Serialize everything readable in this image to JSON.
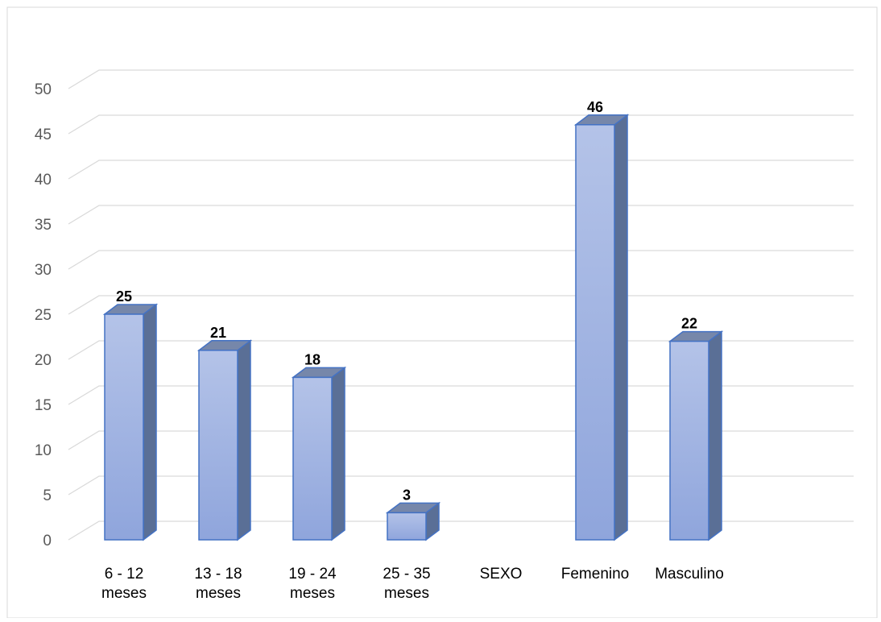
{
  "chart_data": {
    "type": "bar",
    "style": "3d-clustered-column",
    "title": "",
    "xlabel": "",
    "ylabel": "",
    "ylim": [
      0,
      50
    ],
    "y_ticks": [
      "0",
      "5",
      "10",
      "15",
      "20",
      "25",
      "30",
      "35",
      "40",
      "45",
      "50"
    ],
    "grid": true,
    "legend": "none",
    "categories": [
      [
        "6 - 12",
        "meses"
      ],
      [
        "13 - 18",
        "meses"
      ],
      [
        "19 - 24",
        "meses"
      ],
      [
        "25 - 35",
        "meses"
      ],
      [
        "SEXO"
      ],
      [
        "Femenino"
      ],
      [
        "Masculino"
      ]
    ],
    "values": [
      25,
      21,
      18,
      3,
      null,
      46,
      22
    ],
    "data_labels": [
      "25",
      "21",
      "18",
      "3",
      "",
      "46",
      "22"
    ],
    "colors": {
      "bar_front_top": "#b4c3e8",
      "bar_front_bottom": "#8fa5dc",
      "bar_side": "#5a6f96",
      "bar_top": "#7687aa",
      "bar_edge": "#4472c4",
      "grid": "#d9d9d9",
      "frame": "#d9d9d9"
    }
  }
}
